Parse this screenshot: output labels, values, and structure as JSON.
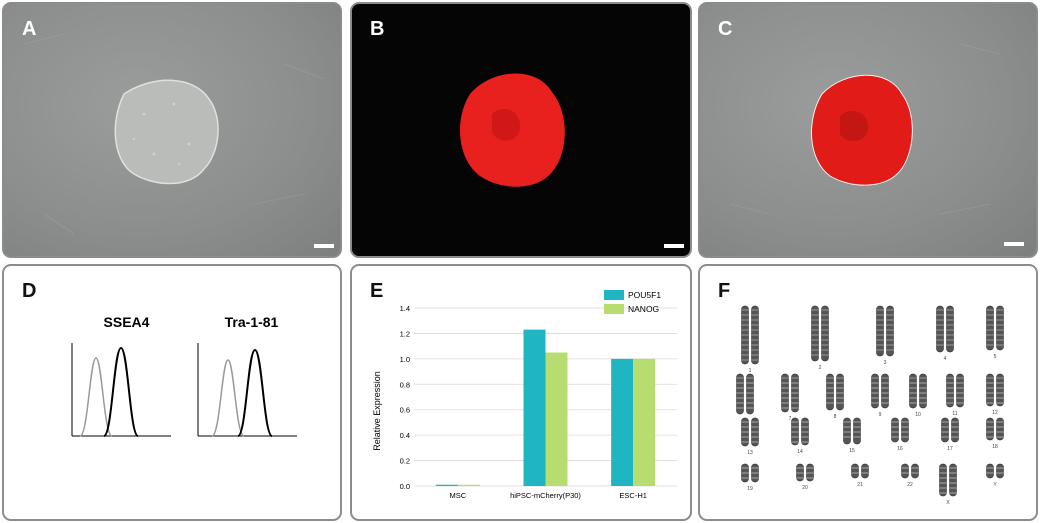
{
  "panels": {
    "a": {
      "label": "A"
    },
    "b": {
      "label": "B"
    },
    "c": {
      "label": "C"
    },
    "d": {
      "label": "D",
      "histograms": [
        {
          "title": "SSEA4"
        },
        {
          "title": "Tra-1-81"
        }
      ]
    },
    "e": {
      "label": "E"
    },
    "f": {
      "label": "F",
      "chromosome_labels": [
        "1",
        "2",
        "3",
        "4",
        "5",
        "6",
        "7",
        "8",
        "9",
        "10",
        "11",
        "12",
        "13",
        "14",
        "15",
        "16",
        "17",
        "18",
        "19",
        "20",
        "21",
        "22",
        "X",
        "Y"
      ]
    }
  },
  "colors": {
    "pou5f1": "#1fb5c2",
    "nanog": "#b7dc6f",
    "mcherry": "#e8201e"
  },
  "chart_data": {
    "type": "bar",
    "categories": [
      "MSC",
      "hiPSC-mCherry(P30)",
      "ESC-H1"
    ],
    "series": [
      {
        "name": "POU5F1",
        "values": [
          0.01,
          1.23,
          1.0
        ]
      },
      {
        "name": "NANOG",
        "values": [
          0.01,
          1.05,
          1.0
        ]
      }
    ],
    "title": "",
    "xlabel": "",
    "ylabel": "Relative Expression",
    "ylim": [
      0,
      1.4
    ],
    "yticks": [
      "0.0",
      "0.2",
      "0.4",
      "0.6",
      "0.8",
      "1.0",
      "1.2",
      "1.4"
    ],
    "grid": true,
    "legend": "top-right"
  }
}
